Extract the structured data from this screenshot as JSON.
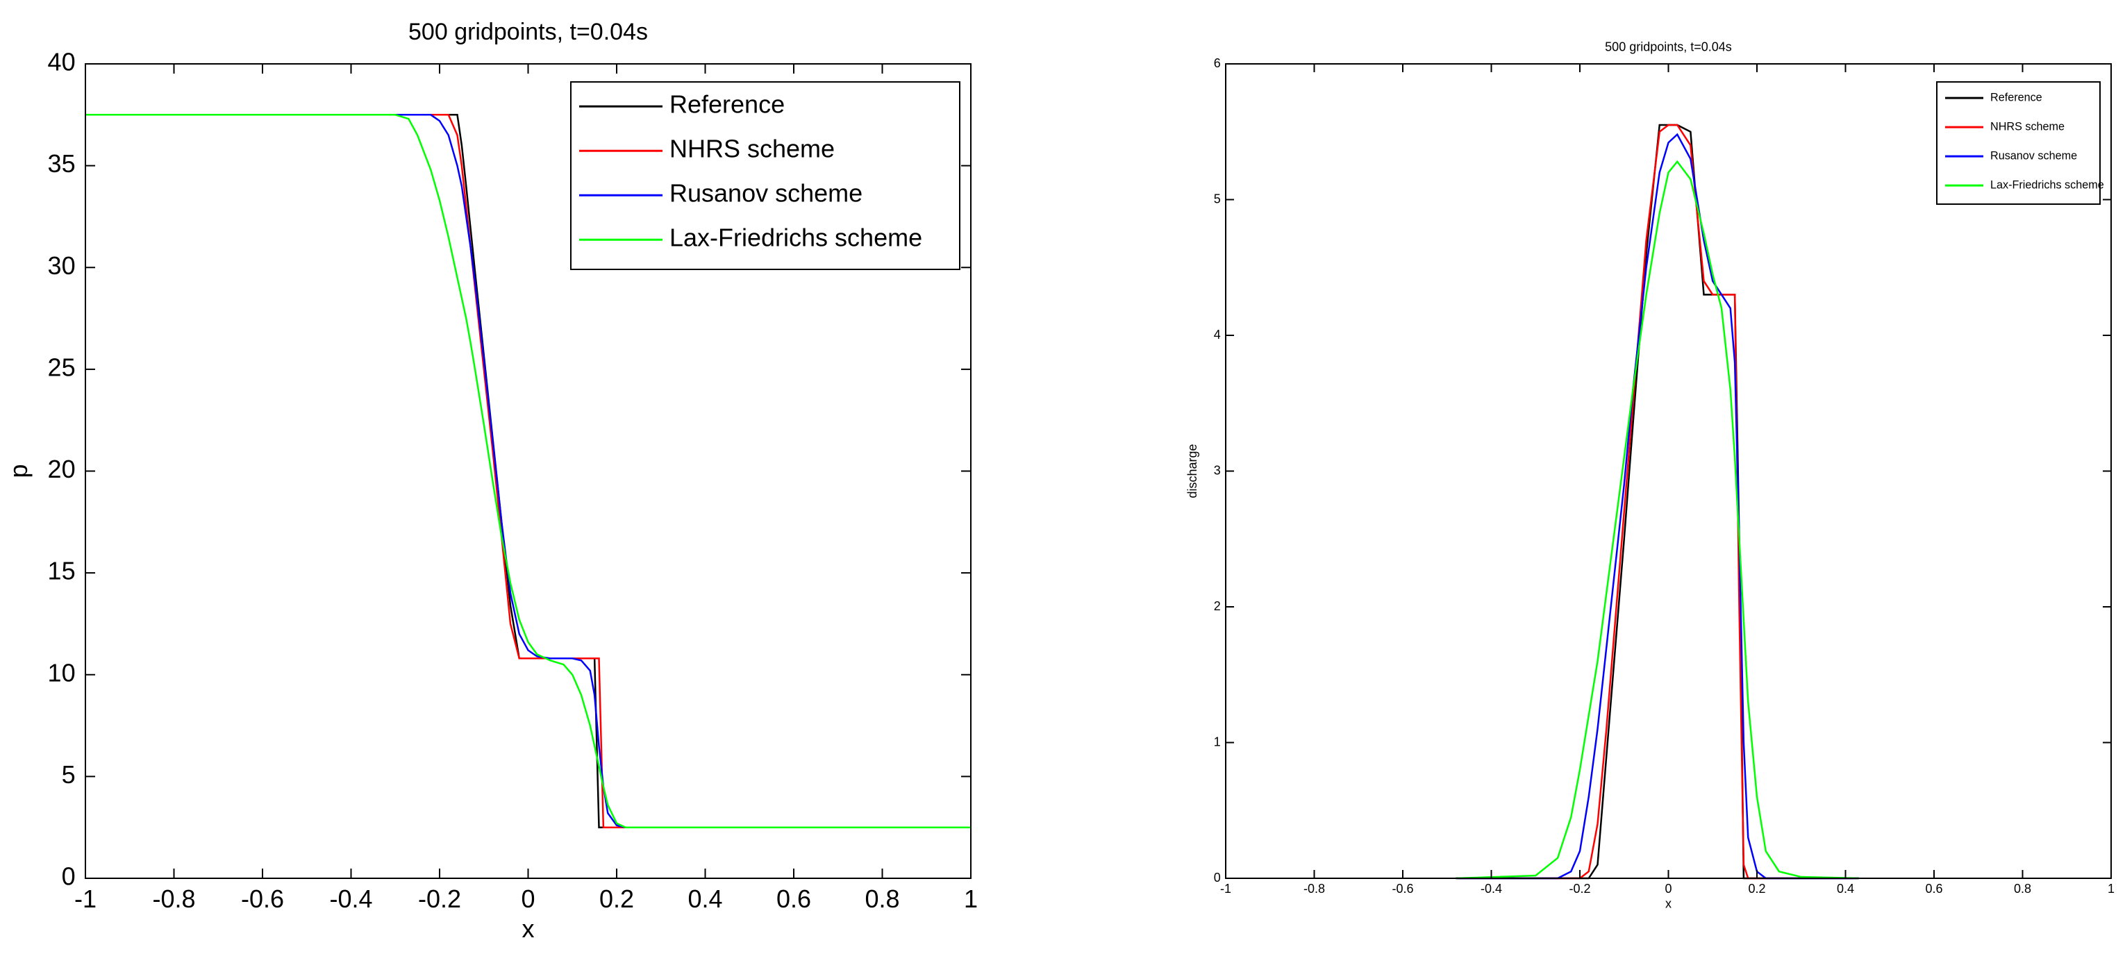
{
  "chart_data": [
    {
      "type": "line",
      "title": "500 gridpoints, t=0.04s",
      "x_label": "x",
      "y_label": "p",
      "xlim": [
        -1,
        1
      ],
      "ylim": [
        0,
        40
      ],
      "xticks": [
        -1,
        -0.8,
        -0.6,
        -0.4,
        -0.2,
        0,
        0.2,
        0.4,
        0.6,
        0.8,
        1
      ],
      "yticks": [
        0,
        5,
        10,
        15,
        20,
        25,
        30,
        35,
        40
      ],
      "grid": false,
      "legend": "upper right",
      "x": [
        -1,
        -0.3,
        -0.27,
        -0.25,
        -0.22,
        -0.2,
        -0.18,
        -0.16,
        -0.15,
        -0.14,
        -0.13,
        -0.12,
        -0.1,
        -0.08,
        -0.06,
        -0.04,
        -0.02,
        0,
        0.02,
        0.05,
        0.08,
        0.1,
        0.12,
        0.14,
        0.15,
        0.16,
        0.17,
        0.18,
        0.2,
        0.22,
        0.25,
        1
      ],
      "series": [
        {
          "name": "Reference",
          "color": "#000000",
          "values": [
            37.5,
            37.5,
            37.5,
            37.5,
            37.5,
            37.5,
            37.5,
            37.5,
            36,
            34,
            31.9,
            29.8,
            25.7,
            21.6,
            17.5,
            13.4,
            10.8,
            10.8,
            10.8,
            10.8,
            10.8,
            10.8,
            10.8,
            10.8,
            10.8,
            2.5,
            2.5,
            2.5,
            2.5,
            2.5,
            2.5,
            2.5
          ]
        },
        {
          "name": "NHRS scheme",
          "color": "#ff0000",
          "values": [
            37.5,
            37.5,
            37.5,
            37.5,
            37.5,
            37.5,
            37.5,
            36.5,
            35,
            33,
            31,
            29,
            25,
            21,
            16.8,
            12.5,
            10.8,
            10.8,
            10.8,
            10.8,
            10.8,
            10.8,
            10.8,
            10.8,
            10.8,
            10.8,
            2.5,
            2.5,
            2.5,
            2.5,
            2.5,
            2.5
          ]
        },
        {
          "name": "Rusanov scheme",
          "color": "#0000ff",
          "values": [
            37.5,
            37.5,
            37.5,
            37.5,
            37.5,
            37.2,
            36.5,
            35,
            34,
            32.5,
            31,
            29.3,
            25.5,
            21.5,
            17.5,
            14,
            12,
            11.2,
            10.9,
            10.8,
            10.8,
            10.8,
            10.7,
            10.2,
            9,
            6.5,
            4.5,
            3.2,
            2.6,
            2.5,
            2.5,
            2.5
          ]
        },
        {
          "name": "Lax-Friedrichs scheme",
          "color": "#00ff00",
          "values": [
            37.5,
            37.5,
            37.3,
            36.5,
            34.8,
            33.3,
            31.5,
            29.5,
            28.5,
            27.5,
            26.3,
            25,
            22.3,
            19.5,
            16.8,
            14.5,
            12.7,
            11.6,
            11,
            10.7,
            10.5,
            10,
            9,
            7.5,
            6.5,
            5.5,
            4.5,
            3.6,
            2.7,
            2.5,
            2.5,
            2.5
          ]
        }
      ]
    },
    {
      "type": "line",
      "title": "500 gridpoints, t=0.04s",
      "x_label": "x",
      "y_label": "discharge",
      "xlim": [
        -1,
        1
      ],
      "ylim": [
        0,
        6
      ],
      "xticks": [
        -1,
        -0.8,
        -0.6,
        -0.4,
        -0.2,
        0,
        0.2,
        0.4,
        0.6,
        0.8,
        1
      ],
      "yticks": [
        0,
        1,
        2,
        3,
        4,
        5,
        6
      ],
      "grid": false,
      "legend": "upper right",
      "x": [
        -0.48,
        -0.3,
        -0.25,
        -0.22,
        -0.2,
        -0.18,
        -0.16,
        -0.14,
        -0.12,
        -0.1,
        -0.08,
        -0.05,
        -0.02,
        0,
        0.02,
        0.05,
        0.08,
        0.1,
        0.12,
        0.14,
        0.15,
        0.16,
        0.17,
        0.18,
        0.2,
        0.22,
        0.25,
        0.3,
        0.43
      ],
      "series": [
        {
          "name": "Reference",
          "color": "#000000",
          "values": [
            0,
            0,
            0,
            0,
            0,
            0,
            0.1,
            0.9,
            1.7,
            2.5,
            3.35,
            4.6,
            5.55,
            5.55,
            5.55,
            5.5,
            4.3,
            4.3,
            4.3,
            4.3,
            4.3,
            2.5,
            0,
            0,
            0,
            0,
            0,
            0,
            0
          ]
        },
        {
          "name": "NHRS scheme",
          "color": "#ff0000",
          "values": [
            0,
            0,
            0,
            0,
            0,
            0.05,
            0.4,
            1.1,
            1.9,
            2.7,
            3.5,
            4.7,
            5.5,
            5.55,
            5.55,
            5.4,
            4.4,
            4.3,
            4.3,
            4.3,
            4.3,
            2,
            0.1,
            0,
            0,
            0,
            0,
            0,
            0
          ]
        },
        {
          "name": "Rusanov scheme",
          "color": "#0000ff",
          "values": [
            0,
            0,
            0,
            0.05,
            0.2,
            0.6,
            1.1,
            1.7,
            2.3,
            2.9,
            3.6,
            4.5,
            5.2,
            5.42,
            5.48,
            5.3,
            4.7,
            4.4,
            4.3,
            4.2,
            3.8,
            2.5,
            1,
            0.3,
            0.05,
            0,
            0,
            0,
            0
          ]
        },
        {
          "name": "Lax-Friedrichs scheme",
          "color": "#00ff00",
          "values": [
            0,
            0.02,
            0.15,
            0.45,
            0.8,
            1.2,
            1.6,
            2.1,
            2.6,
            3.1,
            3.6,
            4.3,
            4.9,
            5.2,
            5.28,
            5.15,
            4.75,
            4.45,
            4.2,
            3.6,
            3.1,
            2.5,
            1.9,
            1.3,
            0.6,
            0.2,
            0.05,
            0.01,
            0
          ]
        }
      ]
    }
  ]
}
